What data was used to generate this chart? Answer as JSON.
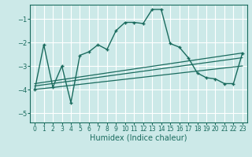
{
  "xlabel": "Humidex (Indice chaleur)",
  "ylabel": "",
  "bg_color": "#cce9e8",
  "line_color": "#1a6b5e",
  "grid_color": "#ffffff",
  "xlim": [
    -0.5,
    23.5
  ],
  "ylim": [
    -5.4,
    -0.4
  ],
  "xticks": [
    0,
    1,
    2,
    3,
    4,
    5,
    6,
    7,
    8,
    9,
    10,
    11,
    12,
    13,
    14,
    15,
    16,
    17,
    18,
    19,
    20,
    21,
    22,
    23
  ],
  "yticks": [
    -5,
    -4,
    -3,
    -2,
    -1
  ],
  "main_x": [
    0,
    1,
    2,
    3,
    4,
    5,
    6,
    7,
    8,
    9,
    10,
    11,
    12,
    13,
    14,
    15,
    16,
    17,
    18,
    19,
    20,
    21,
    22,
    23
  ],
  "main_y": [
    -4.0,
    -2.1,
    -3.9,
    -3.0,
    -4.55,
    -2.55,
    -2.4,
    -2.1,
    -2.3,
    -1.5,
    -1.15,
    -1.15,
    -1.2,
    -0.6,
    -0.6,
    -2.05,
    -2.2,
    -2.65,
    -3.3,
    -3.5,
    -3.55,
    -3.75,
    -3.75,
    -2.45
  ],
  "line1_x": [
    0,
    23
  ],
  "line1_y": [
    -3.75,
    -2.45
  ],
  "line2_x": [
    0,
    23
  ],
  "line2_y": [
    -3.85,
    -2.65
  ],
  "line3_x": [
    0,
    23
  ],
  "line3_y": [
    -4.0,
    -3.0
  ]
}
